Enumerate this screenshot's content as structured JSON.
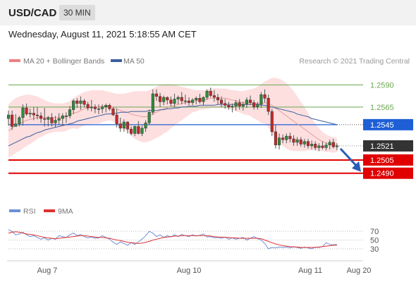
{
  "header": {
    "symbol": "USD/CAD",
    "timeframe": "30 MIN"
  },
  "datetime": "Wednesday, August 11, 2021 5:18:55 AM CET",
  "legend": {
    "ma_bb": {
      "label": "MA 20 + Bollinger Bands",
      "color": "#f08080"
    },
    "ma50": {
      "label": "MA 50",
      "color": "#3a5fa0"
    },
    "copyright": "Research © 2021 Trading Central"
  },
  "chart_data": [
    {
      "type": "candlestick",
      "title": "",
      "x_tick_labels": [
        "Aug 7",
        "Aug 10",
        "Aug 11",
        "Aug 20"
      ],
      "ylim": [
        1.2473,
        1.2604
      ],
      "levels": [
        {
          "label": "1.2590",
          "value": 1.259,
          "style": "target",
          "color": "#6aa84f"
        },
        {
          "label": "1.2565",
          "value": 1.2565,
          "style": "target",
          "color": "#6aa84f"
        },
        {
          "label": "1.2545",
          "value": 1.2545,
          "style": "pivot",
          "color": "#1e5fd6"
        },
        {
          "label": "1.2521",
          "value": 1.2521,
          "style": "last",
          "color": "#333333"
        },
        {
          "label": "1.2505",
          "value": 1.2505,
          "style": "target",
          "color": "#e00000"
        },
        {
          "label": "1.2490",
          "value": 1.249,
          "style": "target",
          "color": "#e00000"
        }
      ],
      "last_price": 1.2521,
      "forecast_arrow": {
        "from": 1.2521,
        "to": 1.249,
        "color": "#2a5cb8"
      },
      "candles_ohlc": [
        [
          1.2552,
          1.2561,
          1.2544,
          1.2556
        ],
        [
          1.2556,
          1.2561,
          1.2539,
          1.2543
        ],
        [
          1.2543,
          1.2557,
          1.2543,
          1.2546
        ],
        [
          1.2546,
          1.2555,
          1.2543,
          1.2553
        ],
        [
          1.2553,
          1.2568,
          1.2544,
          1.2564
        ],
        [
          1.2564,
          1.2569,
          1.2555,
          1.2557
        ],
        [
          1.2557,
          1.2563,
          1.2553,
          1.2558
        ],
        [
          1.2558,
          1.2565,
          1.255,
          1.2556
        ],
        [
          1.2556,
          1.2565,
          1.2551,
          1.2555
        ],
        [
          1.2555,
          1.2559,
          1.2547,
          1.2552
        ],
        [
          1.2552,
          1.2564,
          1.2543,
          1.2551
        ],
        [
          1.2551,
          1.2555,
          1.2543,
          1.2553
        ],
        [
          1.2553,
          1.2558,
          1.2543,
          1.2547
        ],
        [
          1.2547,
          1.2555,
          1.2542,
          1.255
        ],
        [
          1.255,
          1.2558,
          1.2545,
          1.2552
        ],
        [
          1.2552,
          1.2558,
          1.2544,
          1.2555
        ],
        [
          1.2555,
          1.2559,
          1.2547,
          1.2555
        ],
        [
          1.2555,
          1.2566,
          1.2552,
          1.2562
        ],
        [
          1.2562,
          1.2574,
          1.2557,
          1.2572
        ],
        [
          1.2572,
          1.2575,
          1.2564,
          1.2569
        ],
        [
          1.2569,
          1.2577,
          1.2562,
          1.2572
        ],
        [
          1.2572,
          1.2574,
          1.2565,
          1.2568
        ],
        [
          1.2568,
          1.2571,
          1.2561,
          1.2564
        ],
        [
          1.2564,
          1.2573,
          1.256,
          1.2565
        ],
        [
          1.2565,
          1.2568,
          1.2558,
          1.2563
        ],
        [
          1.2563,
          1.2568,
          1.2557,
          1.2563
        ],
        [
          1.2563,
          1.2568,
          1.2558,
          1.2565
        ],
        [
          1.2565,
          1.2569,
          1.2559,
          1.2567
        ],
        [
          1.2567,
          1.2569,
          1.2561,
          1.2563
        ],
        [
          1.2563,
          1.2565,
          1.2555,
          1.2556
        ],
        [
          1.2556,
          1.2563,
          1.2542,
          1.2546
        ],
        [
          1.2546,
          1.2553,
          1.2537,
          1.2541
        ],
        [
          1.2541,
          1.2551,
          1.2537,
          1.2548
        ],
        [
          1.2548,
          1.2549,
          1.2535,
          1.254
        ],
        [
          1.254,
          1.2543,
          1.2533,
          1.2535
        ],
        [
          1.2535,
          1.2544,
          1.2532,
          1.2543
        ],
        [
          1.2543,
          1.2549,
          1.2534,
          1.2535
        ],
        [
          1.2535,
          1.2544,
          1.2532,
          1.2541
        ],
        [
          1.2541,
          1.255,
          1.2537,
          1.2547
        ],
        [
          1.2547,
          1.2562,
          1.2545,
          1.2559
        ],
        [
          1.2559,
          1.2585,
          1.2556,
          1.258
        ],
        [
          1.258,
          1.2585,
          1.2572,
          1.2577
        ],
        [
          1.2577,
          1.2581,
          1.2565,
          1.2571
        ],
        [
          1.2571,
          1.2578,
          1.2567,
          1.2576
        ],
        [
          1.2576,
          1.2577,
          1.2568,
          1.2573
        ],
        [
          1.2573,
          1.2577,
          1.2566,
          1.2569
        ],
        [
          1.2569,
          1.258,
          1.2565,
          1.2574
        ],
        [
          1.2574,
          1.2578,
          1.2568,
          1.2576
        ],
        [
          1.2576,
          1.2582,
          1.2568,
          1.2572
        ],
        [
          1.2572,
          1.2579,
          1.2568,
          1.2572
        ],
        [
          1.2572,
          1.2576,
          1.2567,
          1.257
        ],
        [
          1.257,
          1.2575,
          1.2567,
          1.2573
        ],
        [
          1.2573,
          1.2577,
          1.2568,
          1.2575
        ],
        [
          1.2575,
          1.258,
          1.2569,
          1.2571
        ],
        [
          1.2571,
          1.2577,
          1.2567,
          1.2576
        ],
        [
          1.2576,
          1.2585,
          1.2573,
          1.2583
        ],
        [
          1.2583,
          1.2587,
          1.2576,
          1.2578
        ],
        [
          1.2578,
          1.2584,
          1.2571,
          1.2576
        ],
        [
          1.2576,
          1.258,
          1.2568,
          1.2573
        ],
        [
          1.2573,
          1.2577,
          1.2565,
          1.2569
        ],
        [
          1.2569,
          1.2574,
          1.2563,
          1.2567
        ],
        [
          1.2567,
          1.2571,
          1.2562,
          1.2565
        ],
        [
          1.2565,
          1.2569,
          1.2559,
          1.2566
        ],
        [
          1.2566,
          1.2573,
          1.2561,
          1.257
        ],
        [
          1.257,
          1.2574,
          1.2562,
          1.2566
        ],
        [
          1.2566,
          1.2571,
          1.2561,
          1.2568
        ],
        [
          1.2568,
          1.2576,
          1.2564,
          1.2573
        ],
        [
          1.2573,
          1.2578,
          1.2567,
          1.257
        ],
        [
          1.257,
          1.2573,
          1.2562,
          1.2565
        ],
        [
          1.2565,
          1.2571,
          1.2562,
          1.2568
        ],
        [
          1.2568,
          1.2582,
          1.2564,
          1.2579
        ],
        [
          1.2579,
          1.2585,
          1.257,
          1.2575
        ],
        [
          1.2575,
          1.2579,
          1.2556,
          1.256
        ],
        [
          1.256,
          1.2563,
          1.2532,
          1.2537
        ],
        [
          1.2537,
          1.2545,
          1.2518,
          1.2522
        ],
        [
          1.2522,
          1.2535,
          1.2517,
          1.253
        ],
        [
          1.253,
          1.2534,
          1.2524,
          1.2528
        ],
        [
          1.2528,
          1.2535,
          1.2524,
          1.2532
        ],
        [
          1.2532,
          1.2536,
          1.2525,
          1.2529
        ],
        [
          1.2529,
          1.2533,
          1.2521,
          1.2525
        ],
        [
          1.2525,
          1.2531,
          1.2521,
          1.2528
        ],
        [
          1.2528,
          1.2531,
          1.252,
          1.2523
        ],
        [
          1.2523,
          1.2529,
          1.2519,
          1.2526
        ],
        [
          1.2526,
          1.2529,
          1.2518,
          1.2521
        ],
        [
          1.2521,
          1.2527,
          1.2517,
          1.2523
        ],
        [
          1.2523,
          1.2526,
          1.2516,
          1.2519
        ],
        [
          1.2519,
          1.2524,
          1.2515,
          1.2521
        ],
        [
          1.2521,
          1.2526,
          1.2517,
          1.2519
        ],
        [
          1.2519,
          1.2525,
          1.2516,
          1.2522
        ],
        [
          1.2522,
          1.2528,
          1.2517,
          1.2525
        ],
        [
          1.2525,
          1.2529,
          1.2518,
          1.252
        ],
        [
          1.252,
          1.2524,
          1.2516,
          1.2521
        ]
      ],
      "ma20": [
        1.2538,
        1.2541,
        1.2544,
        1.2546,
        1.2548,
        1.255,
        1.2551,
        1.2552,
        1.2553,
        1.2553,
        1.2553,
        1.2553,
        1.2553,
        1.2553,
        1.2553,
        1.2553,
        1.2554,
        1.2556,
        1.2558,
        1.2559,
        1.2561,
        1.2563,
        1.2564,
        1.2565,
        1.2565,
        1.2565,
        1.2566,
        1.2566,
        1.2566,
        1.2565,
        1.2563,
        1.2561,
        1.256,
        1.2559,
        1.2557,
        1.2556,
        1.2555,
        1.2554,
        1.2554,
        1.2555,
        1.2557,
        1.2559,
        1.2561,
        1.2563,
        1.2564,
        1.2566,
        1.2567,
        1.2568,
        1.2569,
        1.257,
        1.2571,
        1.2572,
        1.2572,
        1.2573,
        1.2573,
        1.2574,
        1.2575,
        1.2575,
        1.2575,
        1.2575,
        1.2575,
        1.2574,
        1.2573,
        1.2572,
        1.2571,
        1.257,
        1.257,
        1.257,
        1.2569,
        1.2569,
        1.2569,
        1.257,
        1.2569,
        1.2567,
        1.2564,
        1.2561,
        1.2558,
        1.2555,
        1.2552,
        1.2549,
        1.2546,
        1.2543,
        1.254,
        1.2537,
        1.2534,
        1.2531,
        1.2528,
        1.2526,
        1.2524,
        1.2523,
        1.2522,
        1.2522
      ],
      "bb_upper": [
        1.2568,
        1.2572,
        1.2575,
        1.2577,
        1.2578,
        1.2579,
        1.2579,
        1.2578,
        1.2577,
        1.2575,
        1.2573,
        1.2571,
        1.257,
        1.2569,
        1.2569,
        1.2569,
        1.257,
        1.2572,
        1.2575,
        1.2578,
        1.258,
        1.2582,
        1.2583,
        1.2584,
        1.2584,
        1.2584,
        1.2584,
        1.2583,
        1.2582,
        1.2581,
        1.258,
        1.258,
        1.258,
        1.2581,
        1.2582,
        1.2583,
        1.2583,
        1.2583,
        1.2583,
        1.2584,
        1.2586,
        1.2588,
        1.259,
        1.2591,
        1.2591,
        1.2591,
        1.259,
        1.2589,
        1.2588,
        1.2587,
        1.2586,
        1.2585,
        1.2584,
        1.2584,
        1.2584,
        1.2585,
        1.2586,
        1.2586,
        1.2586,
        1.2586,
        1.2586,
        1.2585,
        1.2584,
        1.2584,
        1.2583,
        1.2583,
        1.2584,
        1.2585,
        1.2586,
        1.2588,
        1.2591,
        1.2594,
        1.2596,
        1.2598,
        1.2598,
        1.2597,
        1.2595,
        1.2592,
        1.2588,
        1.2583,
        1.2577,
        1.2571,
        1.2565,
        1.2558,
        1.2552,
        1.2546,
        1.2541,
        1.2537,
        1.2534,
        1.2532,
        1.2531,
        1.253
      ],
      "bb_lower": [
        1.2508,
        1.251,
        1.2513,
        1.2515,
        1.2518,
        1.2521,
        1.2523,
        1.2526,
        1.2529,
        1.2531,
        1.2533,
        1.2535,
        1.2536,
        1.2537,
        1.2537,
        1.2537,
        1.2538,
        1.254,
        1.2541,
        1.254,
        1.2542,
        1.2544,
        1.2545,
        1.2546,
        1.2546,
        1.2546,
        1.2548,
        1.2549,
        1.255,
        1.2549,
        1.2546,
        1.2542,
        1.254,
        1.2537,
        1.2532,
        1.2529,
        1.2527,
        1.2525,
        1.2525,
        1.2526,
        1.2528,
        1.253,
        1.2532,
        1.2535,
        1.2537,
        1.2541,
        1.2544,
        1.2547,
        1.255,
        1.2553,
        1.2556,
        1.2559,
        1.256,
        1.2562,
        1.2562,
        1.2563,
        1.2564,
        1.2564,
        1.2564,
        1.2564,
        1.2564,
        1.2563,
        1.2562,
        1.256,
        1.2559,
        1.2557,
        1.2556,
        1.2555,
        1.2552,
        1.255,
        1.2547,
        1.2546,
        1.2542,
        1.2536,
        1.253,
        1.2525,
        1.2521,
        1.2518,
        1.2516,
        1.2515,
        1.2515,
        1.2515,
        1.2515,
        1.2516,
        1.2516,
        1.2516,
        1.2515,
        1.2515,
        1.2514,
        1.2514,
        1.2513,
        1.2514
      ],
      "ma50": [
        1.2521,
        1.2523,
        1.2525,
        1.2527,
        1.2529,
        1.2531,
        1.2532,
        1.2534,
        1.2536,
        1.2537,
        1.2539,
        1.254,
        1.2541,
        1.2542,
        1.2543,
        1.2544,
        1.2545,
        1.2546,
        1.2547,
        1.2549,
        1.255,
        1.2551,
        1.2552,
        1.2553,
        1.2554,
        1.2555,
        1.2556,
        1.2557,
        1.2557,
        1.2558,
        1.2558,
        1.2559,
        1.2559,
        1.2559,
        1.256,
        1.256,
        1.256,
        1.256,
        1.256,
        1.2561,
        1.2561,
        1.2561,
        1.2562,
        1.2562,
        1.2563,
        1.2563,
        1.2564,
        1.2564,
        1.2565,
        1.2565,
        1.2566,
        1.2566,
        1.2566,
        1.2567,
        1.2567,
        1.2567,
        1.2567,
        1.2567,
        1.2568,
        1.2568,
        1.2568,
        1.2568,
        1.2568,
        1.2568,
        1.2568,
        1.2568,
        1.2568,
        1.2568,
        1.2568,
        1.2568,
        1.2567,
        1.2567,
        1.2566,
        1.2565,
        1.2564,
        1.2563,
        1.2562,
        1.2561,
        1.256,
        1.2559,
        1.2557,
        1.2556,
        1.2555,
        1.2554,
        1.2552,
        1.2551,
        1.255,
        1.2549,
        1.2548,
        1.2547,
        1.2546,
        1.2545
      ]
    },
    {
      "type": "line",
      "title": "",
      "legend": [
        {
          "label": "RSI",
          "color": "#6b8fd6"
        },
        {
          "label": "9MA",
          "color": "#e03030"
        }
      ],
      "y_tick_labels": [
        "70",
        "50",
        "30"
      ],
      "ylim": [
        20,
        80
      ],
      "series": [
        {
          "name": "RSI",
          "color": "#6b8fd6",
          "values": [
            74,
            70,
            62,
            64,
            68,
            62,
            58,
            60,
            56,
            52,
            55,
            50,
            54,
            52,
            60,
            58,
            56,
            62,
            66,
            60,
            63,
            58,
            55,
            57,
            54,
            55,
            60,
            56,
            52,
            45,
            40,
            46,
            42,
            38,
            44,
            40,
            46,
            52,
            60,
            70,
            66,
            58,
            62,
            56,
            60,
            57,
            62,
            58,
            63,
            60,
            58,
            62,
            59,
            61,
            64,
            57,
            58,
            55,
            56,
            54,
            57,
            52,
            55,
            52,
            54,
            56,
            50,
            54,
            58,
            53,
            50,
            42,
            30,
            33,
            32,
            34,
            33,
            34,
            32,
            35,
            33,
            31,
            34,
            32,
            30,
            34,
            33,
            35,
            44,
            40,
            39,
            40
          ]
        },
        {
          "name": "9MA",
          "color": "#e03030",
          "values": [
            66,
            68,
            69,
            68,
            66,
            64,
            63,
            62,
            60,
            58,
            56,
            55,
            54,
            53,
            54,
            55,
            56,
            57,
            58,
            59,
            60,
            60,
            59,
            58,
            57,
            56,
            56,
            55,
            54,
            52,
            50,
            49,
            47,
            45,
            44,
            43,
            42,
            43,
            45,
            47,
            50,
            52,
            54,
            56,
            57,
            58,
            59,
            59,
            60,
            60,
            60,
            60,
            60,
            60,
            60,
            60,
            59,
            58,
            57,
            57,
            56,
            56,
            55,
            55,
            54,
            54,
            54,
            54,
            54,
            54,
            53,
            50,
            47,
            44,
            41,
            39,
            37,
            36,
            35,
            34,
            34,
            33,
            33,
            33,
            33,
            33,
            34,
            35,
            36,
            37,
            38,
            38
          ]
        }
      ]
    }
  ]
}
